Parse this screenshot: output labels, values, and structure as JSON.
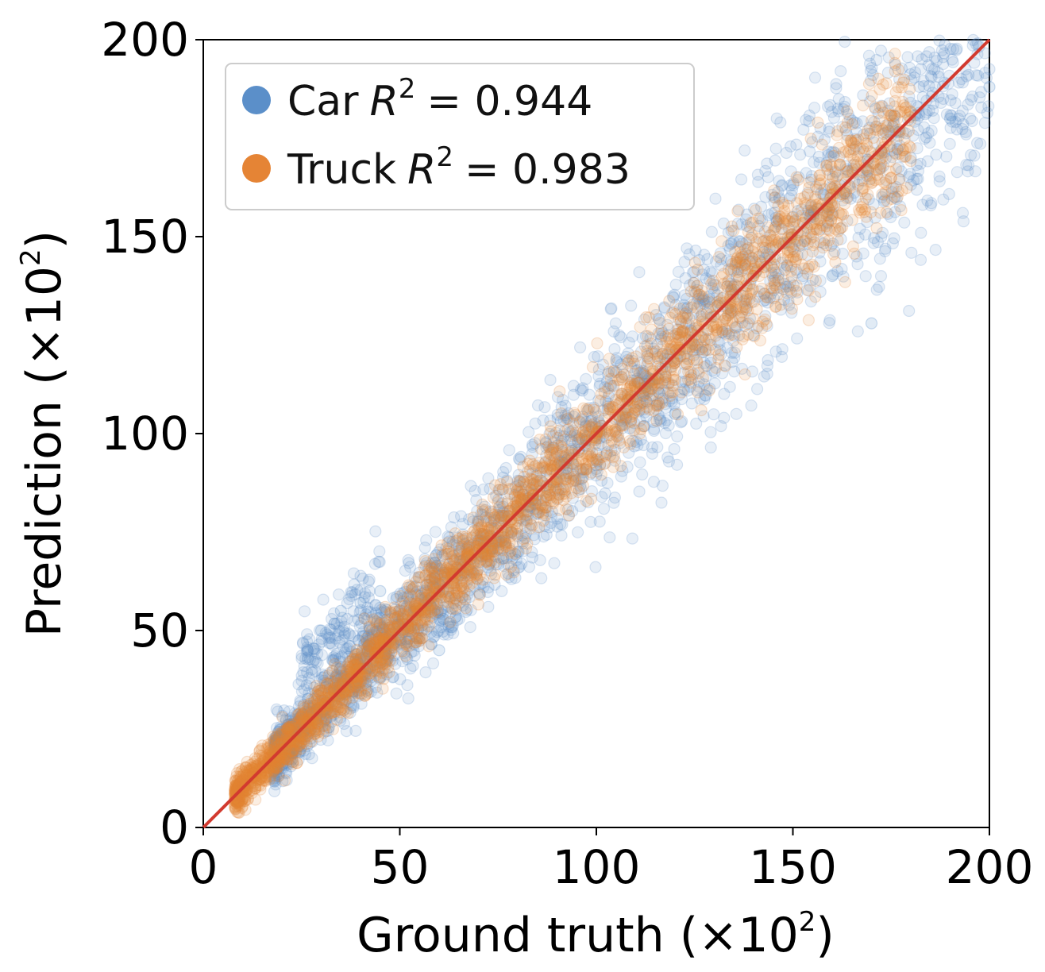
{
  "chart_data": {
    "type": "scatter",
    "title": "",
    "xlabel": "Ground truth (×10",
    "xlabel_exp": "2",
    "xlabel_close": ")",
    "ylabel": "Prediction (×10",
    "ylabel_exp": "2",
    "ylabel_close": ")",
    "xlim": [
      0,
      200
    ],
    "ylim": [
      0,
      200
    ],
    "xticks": [
      0,
      50,
      100,
      150,
      200
    ],
    "yticks": [
      0,
      50,
      100,
      150,
      200
    ],
    "xtick_labels": [
      "0",
      "50",
      "100",
      "150",
      "200"
    ],
    "ytick_labels": [
      "0",
      "50",
      "100",
      "150",
      "200"
    ],
    "grid": false,
    "legend_position": "top-left",
    "reference_line": {
      "name": "identity",
      "from": [
        0,
        0
      ],
      "to": [
        200,
        200
      ],
      "color": "#d23a2f"
    },
    "series": [
      {
        "name": "Car",
        "legend_label": "Car",
        "r2_text": "= 0.944",
        "color": "#5b8fc9",
        "approx_x_range": [
          18,
          200
        ],
        "approx_residual_spread": 0.08,
        "representative_points": [
          [
            30,
            50
          ],
          [
            35,
            55
          ],
          [
            40,
            57
          ],
          [
            45,
            60
          ],
          [
            60,
            45
          ],
          [
            80,
            70
          ],
          [
            100,
            95
          ],
          [
            120,
            105
          ],
          [
            140,
            125
          ],
          [
            150,
            155
          ],
          [
            160,
            140
          ],
          [
            170,
            128
          ],
          [
            180,
            170
          ],
          [
            190,
            180
          ],
          [
            200,
            188
          ]
        ]
      },
      {
        "name": "Truck",
        "legend_label": "Truck",
        "r2_text": "= 0.983",
        "color": "#e58435",
        "approx_x_range": [
          8,
          180
        ],
        "approx_residual_spread": 0.04,
        "representative_points": [
          [
            10,
            12
          ],
          [
            15,
            15
          ],
          [
            25,
            26
          ],
          [
            40,
            40
          ],
          [
            60,
            60
          ],
          [
            80,
            80
          ],
          [
            100,
            100
          ],
          [
            120,
            118
          ],
          [
            140,
            140
          ],
          [
            160,
            158
          ],
          [
            175,
            165
          ]
        ]
      }
    ]
  }
}
